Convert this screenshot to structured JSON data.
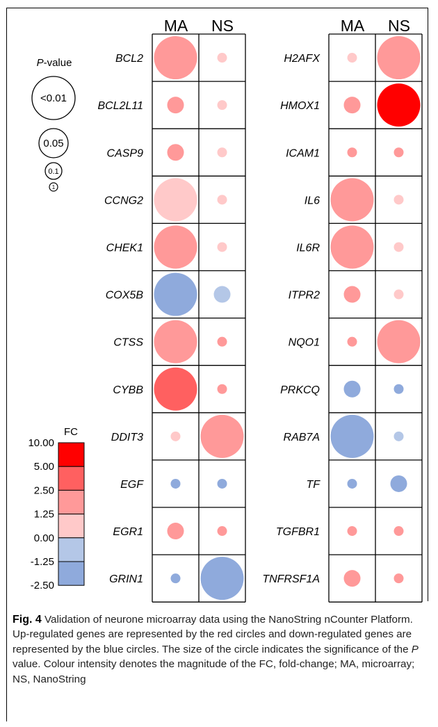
{
  "figure": {
    "label": "Fig. 4",
    "caption_parts": [
      "Validation of neurone microarray data using the NanoString nCounter Platform. Up-regulated genes are represented by the red circles and down-regulated genes are represented by the blue circles. The size of the circle indicates the significance of the ",
      "P",
      " value. Colour intensity denotes the magnitude of the FC, fold-change; MA, microarray; NS, NanoString"
    ]
  },
  "colors": {
    "fc_10": "#ff0000",
    "fc_5": "#ff6060",
    "fc_2_5": "#ff9999",
    "fc_1_25": "#ffc9c9",
    "fc_neg_1_25": "#b4c7e7",
    "fc_neg_2_5": "#8faadc"
  },
  "chart_data": {
    "type": "bubble-grid",
    "columns": [
      "MA",
      "NS"
    ],
    "size_legend": {
      "title_italic": "P",
      "title_rest": "-value",
      "levels": [
        "<0.01",
        "0.05",
        "0.1",
        "1"
      ]
    },
    "color_legend": {
      "title": "FC",
      "ticks": [
        "10.00",
        "5.00",
        "2.50",
        "1.25",
        "0.00",
        "-1.25",
        "-2.50"
      ],
      "bins": [
        "fc_10",
        "fc_5",
        "fc_2_5",
        "fc_1_25",
        "fc_neg_1_25",
        "fc_neg_2_5"
      ]
    },
    "panels": [
      {
        "genes": [
          {
            "name": "BCL2",
            "ma": {
              "p": "<0.01",
              "fc": "fc_2_5"
            },
            "ns": {
              "p": "1",
              "fc": "fc_1_25"
            }
          },
          {
            "name": "BCL2L11",
            "ma": {
              "p": "0.1",
              "fc": "fc_2_5"
            },
            "ns": {
              "p": "1",
              "fc": "fc_1_25"
            }
          },
          {
            "name": "CASP9",
            "ma": {
              "p": "0.1",
              "fc": "fc_2_5"
            },
            "ns": {
              "p": "1",
              "fc": "fc_1_25"
            }
          },
          {
            "name": "CCNG2",
            "ma": {
              "p": "<0.01",
              "fc": "fc_1_25"
            },
            "ns": {
              "p": "1",
              "fc": "fc_1_25"
            }
          },
          {
            "name": "CHEK1",
            "ma": {
              "p": "<0.01",
              "fc": "fc_2_5"
            },
            "ns": {
              "p": "1",
              "fc": "fc_1_25"
            }
          },
          {
            "name": "COX5B",
            "ma": {
              "p": "<0.01",
              "fc": "fc_neg_2_5"
            },
            "ns": {
              "p": "0.1",
              "fc": "fc_neg_1_25"
            }
          },
          {
            "name": "CTSS",
            "ma": {
              "p": "<0.01",
              "fc": "fc_2_5"
            },
            "ns": {
              "p": "1",
              "fc": "fc_2_5"
            }
          },
          {
            "name": "CYBB",
            "ma": {
              "p": "<0.01",
              "fc": "fc_5"
            },
            "ns": {
              "p": "1",
              "fc": "fc_2_5"
            }
          },
          {
            "name": "DDIT3",
            "ma": {
              "p": "1",
              "fc": "fc_1_25"
            },
            "ns": {
              "p": "<0.01",
              "fc": "fc_2_5"
            }
          },
          {
            "name": "EGF",
            "ma": {
              "p": "1",
              "fc": "fc_neg_2_5"
            },
            "ns": {
              "p": "1",
              "fc": "fc_neg_2_5"
            }
          },
          {
            "name": "EGR1",
            "ma": {
              "p": "0.1",
              "fc": "fc_2_5"
            },
            "ns": {
              "p": "1",
              "fc": "fc_2_5"
            }
          },
          {
            "name": "GRIN1",
            "ma": {
              "p": "1",
              "fc": "fc_neg_2_5"
            },
            "ns": {
              "p": "<0.01",
              "fc": "fc_neg_2_5"
            }
          }
        ]
      },
      {
        "genes": [
          {
            "name": "H2AFX",
            "ma": {
              "p": "1",
              "fc": "fc_1_25"
            },
            "ns": {
              "p": "<0.01",
              "fc": "fc_2_5"
            }
          },
          {
            "name": "HMOX1",
            "ma": {
              "p": "0.1",
              "fc": "fc_2_5"
            },
            "ns": {
              "p": "<0.01",
              "fc": "fc_10"
            }
          },
          {
            "name": "ICAM1",
            "ma": {
              "p": "1",
              "fc": "fc_2_5"
            },
            "ns": {
              "p": "1",
              "fc": "fc_2_5"
            }
          },
          {
            "name": "IL6",
            "ma": {
              "p": "<0.01",
              "fc": "fc_2_5"
            },
            "ns": {
              "p": "1",
              "fc": "fc_1_25"
            }
          },
          {
            "name": "IL6R",
            "ma": {
              "p": "<0.01",
              "fc": "fc_2_5"
            },
            "ns": {
              "p": "1",
              "fc": "fc_1_25"
            }
          },
          {
            "name": "ITPR2",
            "ma": {
              "p": "0.1",
              "fc": "fc_2_5"
            },
            "ns": {
              "p": "1",
              "fc": "fc_1_25"
            }
          },
          {
            "name": "NQO1",
            "ma": {
              "p": "1",
              "fc": "fc_2_5"
            },
            "ns": {
              "p": "<0.01",
              "fc": "fc_2_5"
            }
          },
          {
            "name": "PRKCQ",
            "ma": {
              "p": "0.1",
              "fc": "fc_neg_2_5"
            },
            "ns": {
              "p": "1",
              "fc": "fc_neg_2_5"
            }
          },
          {
            "name": "RAB7A",
            "ma": {
              "p": "<0.01",
              "fc": "fc_neg_2_5"
            },
            "ns": {
              "p": "1",
              "fc": "fc_neg_1_25"
            }
          },
          {
            "name": "TF",
            "ma": {
              "p": "1",
              "fc": "fc_neg_2_5"
            },
            "ns": {
              "p": "0.1",
              "fc": "fc_neg_2_5"
            }
          },
          {
            "name": "TGFBR1",
            "ma": {
              "p": "1",
              "fc": "fc_2_5"
            },
            "ns": {
              "p": "1",
              "fc": "fc_2_5"
            }
          },
          {
            "name": "TNFRSF1A",
            "ma": {
              "p": "0.1",
              "fc": "fc_2_5"
            },
            "ns": {
              "p": "1",
              "fc": "fc_2_5"
            }
          }
        ]
      }
    ]
  }
}
